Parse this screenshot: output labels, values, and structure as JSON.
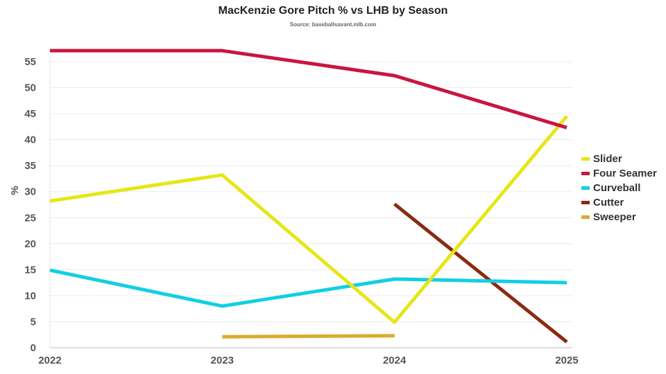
{
  "chart_data": {
    "type": "line",
    "title": "MacKenzie Gore Pitch % vs LHB by Season",
    "subtitle": "Source: baseballsavant.mlb.com",
    "xlabel": "",
    "ylabel": "%",
    "x": [
      "2022",
      "2023",
      "2024",
      "2025"
    ],
    "ylim": [
      0,
      58
    ],
    "yticks": [
      0,
      5,
      10,
      15,
      20,
      25,
      30,
      35,
      40,
      45,
      50,
      55
    ],
    "grid": true,
    "legend_position": "right",
    "series": [
      {
        "name": "Slider",
        "color": "#e6e619",
        "values": [
          28.2,
          33.2,
          4.9,
          44.5
        ]
      },
      {
        "name": "Four Seamer",
        "color": "#c8173f",
        "values": [
          57.1,
          57.1,
          52.3,
          42.3
        ]
      },
      {
        "name": "Curveball",
        "color": "#12cfe3",
        "values": [
          14.9,
          8.0,
          13.2,
          12.5
        ]
      },
      {
        "name": "Cutter",
        "color": "#8b2a12",
        "values": [
          null,
          null,
          27.6,
          1.1
        ]
      },
      {
        "name": "Sweeper",
        "color": "#d9ac2c",
        "values": [
          null,
          2.1,
          2.3,
          null
        ]
      }
    ]
  }
}
